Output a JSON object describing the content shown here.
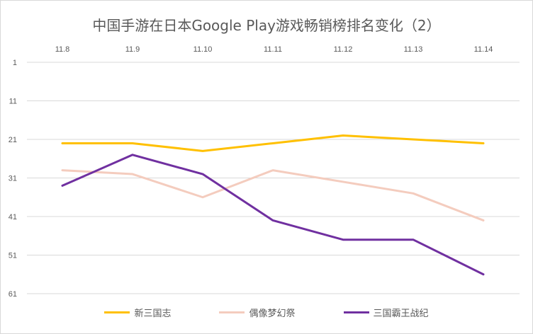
{
  "chart_data": {
    "type": "line",
    "title": "中国手游在日本Google Play游戏畅销榜排名变化（2）",
    "categories": [
      "11.8",
      "11.9",
      "11.10",
      "11.11",
      "11.12",
      "11.13",
      "11.14"
    ],
    "y_ticks": [
      "1",
      "11",
      "21",
      "31",
      "41",
      "51",
      "61"
    ],
    "ylim": [
      1,
      61
    ],
    "y_reversed": true,
    "x_axis_position": "top",
    "grid": true,
    "legend_position": "bottom",
    "series": [
      {
        "name": "新三国志",
        "color": "#FFC000",
        "values": [
          22,
          22,
          24,
          22,
          20,
          21,
          22
        ]
      },
      {
        "name": "偶像梦幻祭",
        "color": "#F4CCBE",
        "values": [
          29,
          30,
          36,
          29,
          32,
          35,
          42
        ]
      },
      {
        "name": "三国霸王战纪",
        "color": "#7030A0",
        "values": [
          33,
          25,
          30,
          42,
          47,
          47,
          56
        ]
      }
    ]
  }
}
